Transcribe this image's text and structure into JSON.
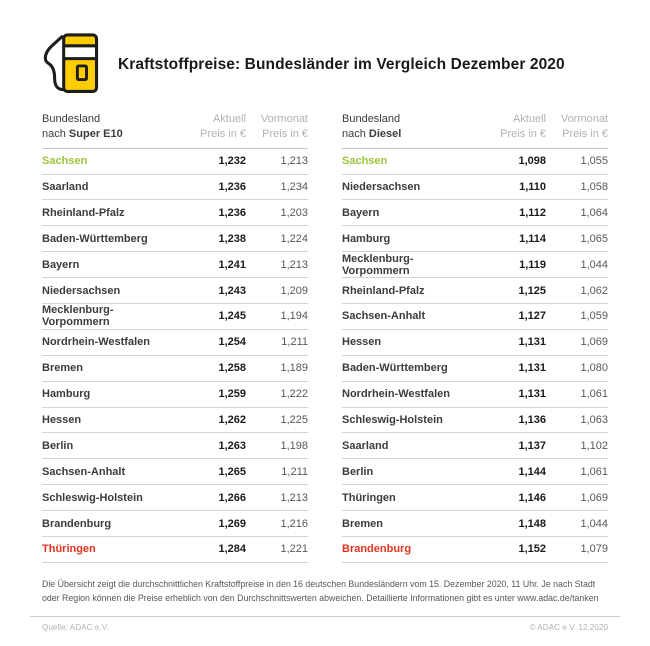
{
  "header": {
    "title": "Kraftstoffpreise: Bundesländer im Vergleich Dezember 2020"
  },
  "tables": [
    {
      "head": {
        "col1_line1": "Bundesland",
        "col1_prefix": "nach ",
        "col1_fuel": "Super E10",
        "col2_line1": "Aktuell",
        "col2_line2": "Preis in €",
        "col3_line1": "Vormonat",
        "col3_line2": "Preis in €"
      },
      "rows": [
        {
          "name": "Sachsen",
          "aktuell": "1,232",
          "vormonat": "1,213",
          "highlight": "best"
        },
        {
          "name": "Saarland",
          "aktuell": "1,236",
          "vormonat": "1,234",
          "highlight": ""
        },
        {
          "name": "Rheinland-Pfalz",
          "aktuell": "1,236",
          "vormonat": "1,203",
          "highlight": ""
        },
        {
          "name": "Baden-Württemberg",
          "aktuell": "1,238",
          "vormonat": "1,224",
          "highlight": ""
        },
        {
          "name": "Bayern",
          "aktuell": "1,241",
          "vormonat": "1,213",
          "highlight": ""
        },
        {
          "name": "Niedersachsen",
          "aktuell": "1,243",
          "vormonat": "1,209",
          "highlight": ""
        },
        {
          "name": "Mecklenburg-Vorpommern",
          "aktuell": "1,245",
          "vormonat": "1,194",
          "highlight": ""
        },
        {
          "name": "Nordrhein-Westfalen",
          "aktuell": "1,254",
          "vormonat": "1,211",
          "highlight": ""
        },
        {
          "name": "Bremen",
          "aktuell": "1,258",
          "vormonat": "1,189",
          "highlight": ""
        },
        {
          "name": "Hamburg",
          "aktuell": "1,259",
          "vormonat": "1,222",
          "highlight": ""
        },
        {
          "name": "Hessen",
          "aktuell": "1,262",
          "vormonat": "1,225",
          "highlight": ""
        },
        {
          "name": "Berlin",
          "aktuell": "1,263",
          "vormonat": "1,198",
          "highlight": ""
        },
        {
          "name": "Sachsen-Anhalt",
          "aktuell": "1,265",
          "vormonat": "1,211",
          "highlight": ""
        },
        {
          "name": "Schleswig-Holstein",
          "aktuell": "1,266",
          "vormonat": "1,213",
          "highlight": ""
        },
        {
          "name": "Brandenburg",
          "aktuell": "1,269",
          "vormonat": "1,216",
          "highlight": ""
        },
        {
          "name": "Thüringen",
          "aktuell": "1,284",
          "vormonat": "1,221",
          "highlight": "worst"
        }
      ]
    },
    {
      "head": {
        "col1_line1": "Bundesland",
        "col1_prefix": "nach ",
        "col1_fuel": "Diesel",
        "col2_line1": "Aktuell",
        "col2_line2": "Preis in €",
        "col3_line1": "Vormonat",
        "col3_line2": "Preis in €"
      },
      "rows": [
        {
          "name": "Sachsen",
          "aktuell": "1,098",
          "vormonat": "1,055",
          "highlight": "best"
        },
        {
          "name": "Niedersachsen",
          "aktuell": "1,110",
          "vormonat": "1,058",
          "highlight": ""
        },
        {
          "name": "Bayern",
          "aktuell": "1,112",
          "vormonat": "1,064",
          "highlight": ""
        },
        {
          "name": "Hamburg",
          "aktuell": "1,114",
          "vormonat": "1,065",
          "highlight": ""
        },
        {
          "name": "Mecklenburg-Vorpommern",
          "aktuell": "1,119",
          "vormonat": "1,044",
          "highlight": ""
        },
        {
          "name": "Rheinland-Pfalz",
          "aktuell": "1,125",
          "vormonat": "1,062",
          "highlight": ""
        },
        {
          "name": "Sachsen-Anhalt",
          "aktuell": "1,127",
          "vormonat": "1,059",
          "highlight": ""
        },
        {
          "name": "Hessen",
          "aktuell": "1,131",
          "vormonat": "1,069",
          "highlight": ""
        },
        {
          "name": "Baden-Württemberg",
          "aktuell": "1,131",
          "vormonat": "1,080",
          "highlight": ""
        },
        {
          "name": "Nordrhein-Westfalen",
          "aktuell": "1,131",
          "vormonat": "1,061",
          "highlight": ""
        },
        {
          "name": "Schleswig-Holstein",
          "aktuell": "1,136",
          "vormonat": "1,063",
          "highlight": ""
        },
        {
          "name": "Saarland",
          "aktuell": "1,137",
          "vormonat": "1,102",
          "highlight": ""
        },
        {
          "name": "Berlin",
          "aktuell": "1,144",
          "vormonat": "1,061",
          "highlight": ""
        },
        {
          "name": "Thüringen",
          "aktuell": "1,146",
          "vormonat": "1,069",
          "highlight": ""
        },
        {
          "name": "Bremen",
          "aktuell": "1,148",
          "vormonat": "1,044",
          "highlight": ""
        },
        {
          "name": "Brandenburg",
          "aktuell": "1,152",
          "vormonat": "1,079",
          "highlight": "worst"
        }
      ]
    }
  ],
  "footnote": {
    "text": "Die Übersicht zeigt die durchschnittlichen Kraftstoffpreise in den 16 deutschen Bundesländern vom 15. Dezember 2020, 11 Uhr. Je nach Stadt oder Region können die Preise erheblich von den Durchschnittswerten abweichen. Detaillierte Informationen gibt es unter www.adac.de/tanken"
  },
  "footer": {
    "source": "Quelle: ADAC e.V.",
    "copyright": "© ADAC e.V. 12.2020"
  },
  "colors": {
    "brand_yellow": "#FFCC00",
    "outline_black": "#1d1d1b",
    "best_green": "#A0C33C",
    "worst_red": "#E3321F"
  }
}
